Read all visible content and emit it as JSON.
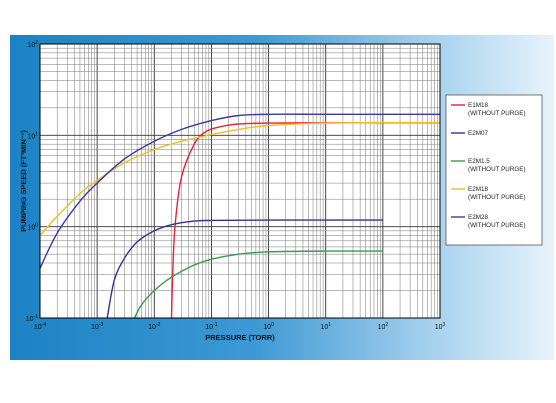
{
  "chart_data": {
    "type": "line",
    "xlabel": "PRESSURE (TORR)",
    "ylabel": "PUMPING SPEED (FT³MIN⁻¹)",
    "x_scale": "log",
    "y_scale": "log",
    "xlim": [
      0.0001,
      1000
    ],
    "ylim": [
      0.1,
      100
    ],
    "grid": true,
    "legend_position": "right",
    "x_ticks": [
      {
        "base": "10",
        "exp": "-4",
        "value": 0.0001
      },
      {
        "base": "10",
        "exp": "-3",
        "value": 0.001
      },
      {
        "base": "10",
        "exp": "-2",
        "value": 0.01
      },
      {
        "base": "10",
        "exp": "-1",
        "value": 0.1
      },
      {
        "base": "10",
        "exp": "0",
        "value": 1
      },
      {
        "base": "10",
        "exp": "1",
        "value": 10
      },
      {
        "base": "10",
        "exp": "2",
        "value": 100
      },
      {
        "base": "10",
        "exp": "3",
        "value": 1000
      }
    ],
    "y_ticks": [
      {
        "base": "10",
        "exp": "-1",
        "value": 0.1
      },
      {
        "base": "10",
        "exp": "0",
        "value": 1
      },
      {
        "base": "10",
        "exp": "1",
        "value": 10
      },
      {
        "base": "10",
        "exp": "2",
        "value": 100
      }
    ],
    "series": [
      {
        "name": "E1M18",
        "sub": "(WITHOUT PURGE)",
        "color": "#e8203a",
        "points": [
          [
            0.02,
            0.1
          ],
          [
            0.021,
            0.3
          ],
          [
            0.023,
            1.0
          ],
          [
            0.03,
            3.5
          ],
          [
            0.05,
            8.0
          ],
          [
            0.08,
            11.0
          ],
          [
            0.15,
            12.5
          ],
          [
            0.3,
            13.3
          ],
          [
            1,
            13.6
          ],
          [
            10,
            13.7
          ],
          [
            100,
            13.7
          ],
          [
            1000,
            13.7
          ]
        ]
      },
      {
        "name": "E2M07",
        "sub": "",
        "color": "#3a2f8c",
        "points": [
          [
            0.0015,
            0.1
          ],
          [
            0.002,
            0.26
          ],
          [
            0.003,
            0.45
          ],
          [
            0.005,
            0.68
          ],
          [
            0.01,
            0.9
          ],
          [
            0.02,
            1.05
          ],
          [
            0.05,
            1.15
          ],
          [
            0.1,
            1.17
          ],
          [
            1,
            1.18
          ],
          [
            10,
            1.18
          ],
          [
            100,
            1.18
          ]
        ]
      },
      {
        "name": "E2M1.5",
        "sub": "(WITHOUT PURGE)",
        "color": "#3a9a4a",
        "points": [
          [
            0.0045,
            0.1
          ],
          [
            0.006,
            0.14
          ],
          [
            0.01,
            0.2
          ],
          [
            0.02,
            0.28
          ],
          [
            0.05,
            0.38
          ],
          [
            0.1,
            0.44
          ],
          [
            0.3,
            0.5
          ],
          [
            1,
            0.53
          ],
          [
            10,
            0.54
          ],
          [
            100,
            0.54
          ]
        ]
      },
      {
        "name": "E2M18",
        "sub": "(WITHOUT PURGE)",
        "color": "#f0c020",
        "points": [
          [
            0.0001,
            0.8
          ],
          [
            0.0002,
            1.3
          ],
          [
            0.0005,
            2.3
          ],
          [
            0.001,
            3.2
          ],
          [
            0.003,
            5.0
          ],
          [
            0.01,
            7.0
          ],
          [
            0.03,
            8.6
          ],
          [
            0.1,
            10.2
          ],
          [
            0.3,
            11.6
          ],
          [
            1,
            12.8
          ],
          [
            10,
            13.6
          ],
          [
            100,
            13.8
          ],
          [
            1000,
            13.8
          ]
        ]
      },
      {
        "name": "E2M28",
        "sub": "(WITHOUT PURGE)",
        "color": "#3d3a9c",
        "points": [
          [
            0.0001,
            0.35
          ],
          [
            0.0002,
            0.85
          ],
          [
            0.0005,
            1.9
          ],
          [
            0.001,
            3.0
          ],
          [
            0.003,
            5.5
          ],
          [
            0.01,
            8.6
          ],
          [
            0.03,
            11.6
          ],
          [
            0.1,
            14.5
          ],
          [
            0.3,
            16.5
          ],
          [
            1,
            17.0
          ],
          [
            10,
            17.0
          ],
          [
            1000,
            17.0
          ]
        ]
      }
    ]
  }
}
